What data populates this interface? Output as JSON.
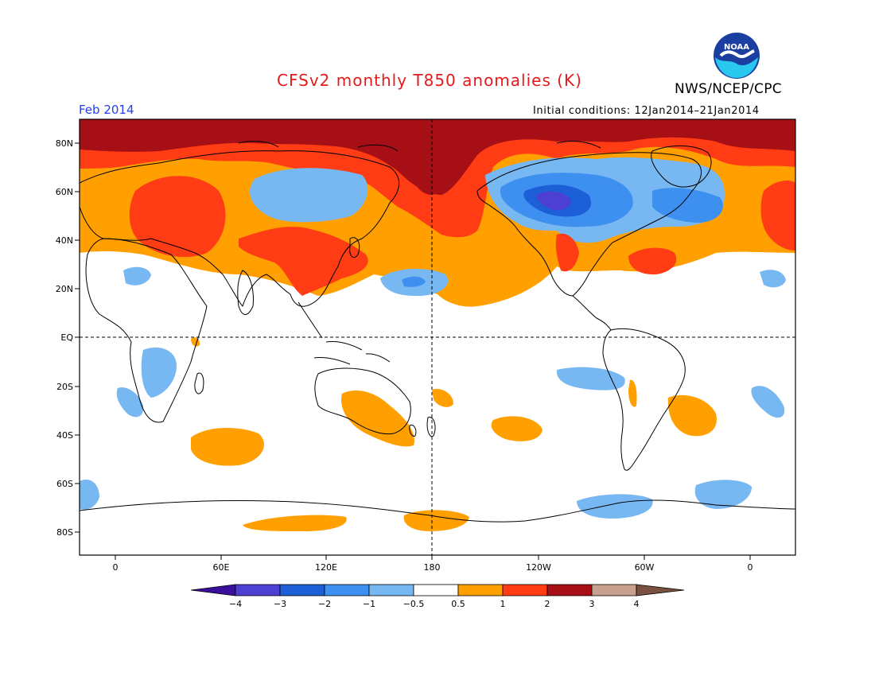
{
  "header": {
    "title": "CFSv2 monthly T850 anomalies (K)",
    "agency": "NWS/NCEP/CPC",
    "logo_text": "NOAA",
    "period": "Feb 2014",
    "initial_conditions": "Initial conditions: 12Jan2014–21Jan2014"
  },
  "axes": {
    "lat_labels": [
      "80N",
      "60N",
      "40N",
      "20N",
      "EQ",
      "20S",
      "40S",
      "60S",
      "80S"
    ],
    "lon_labels": [
      "0",
      "60E",
      "120E",
      "180",
      "120W",
      "60W",
      "0"
    ]
  },
  "colorbar": {
    "tick_labels": [
      "−4",
      "−3",
      "−2",
      "−1",
      "−0.5",
      "0.5",
      "1",
      "2",
      "3",
      "4"
    ],
    "colors": [
      "#3a0f9c",
      "#4d3fd1",
      "#1d5fd6",
      "#3d8ff0",
      "#78b8f2",
      "#ffffff",
      "#ffa000",
      "#ff3c14",
      "#a50f15",
      "#c8a090",
      "#7a5040"
    ]
  },
  "anomaly_regions": [
    {
      "name": "arctic-warm",
      "level": 3
    },
    {
      "name": "europe-warm",
      "level": 2
    },
    {
      "name": "east-asia-warm",
      "level": 2
    },
    {
      "name": "bering-warm",
      "level": 3
    },
    {
      "name": "north-america-cold",
      "level": -3
    },
    {
      "name": "siberia-cold",
      "level": -1
    },
    {
      "name": "north-atlantic-warm",
      "level": 2
    },
    {
      "name": "southern-ocean-warm",
      "level": 1
    },
    {
      "name": "tropical-pacific-cold",
      "level": -1
    }
  ]
}
